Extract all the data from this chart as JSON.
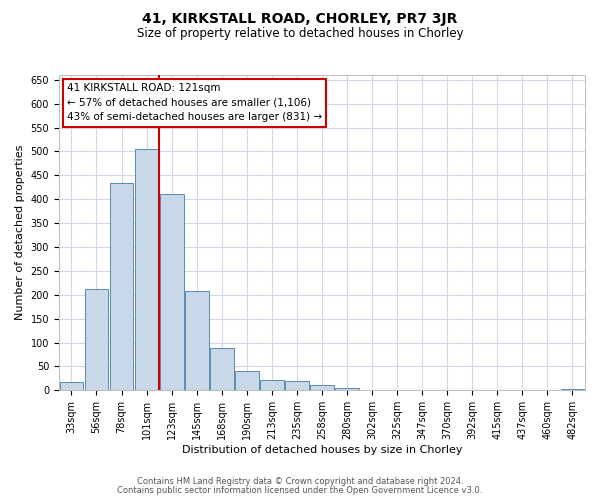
{
  "title": "41, KIRKSTALL ROAD, CHORLEY, PR7 3JR",
  "subtitle": "Size of property relative to detached houses in Chorley",
  "xlabel": "Distribution of detached houses by size in Chorley",
  "ylabel": "Number of detached properties",
  "bar_labels": [
    "33sqm",
    "56sqm",
    "78sqm",
    "101sqm",
    "123sqm",
    "145sqm",
    "168sqm",
    "190sqm",
    "213sqm",
    "235sqm",
    "258sqm",
    "280sqm",
    "302sqm",
    "325sqm",
    "347sqm",
    "370sqm",
    "392sqm",
    "415sqm",
    "437sqm",
    "460sqm",
    "482sqm"
  ],
  "bar_values": [
    18,
    212,
    435,
    505,
    410,
    208,
    88,
    40,
    22,
    19,
    12,
    5,
    0,
    0,
    0,
    0,
    0,
    0,
    0,
    0,
    3
  ],
  "bar_color": "#c8d8e8",
  "bar_edge_color": "#5a8ab0",
  "vline_index": 4,
  "vline_color": "#cc0000",
  "ylim": [
    0,
    660
  ],
  "yticks": [
    0,
    50,
    100,
    150,
    200,
    250,
    300,
    350,
    400,
    450,
    500,
    550,
    600,
    650
  ],
  "annotation_title": "41 KIRKSTALL ROAD: 121sqm",
  "annotation_line1": "← 57% of detached houses are smaller (1,106)",
  "annotation_line2": "43% of semi-detached houses are larger (831) →",
  "footer1": "Contains HM Land Registry data © Crown copyright and database right 2024.",
  "footer2": "Contains public sector information licensed under the Open Government Licence v3.0.",
  "grid_color": "#d0d8e8",
  "background_color": "#ffffff",
  "title_fontsize": 10,
  "subtitle_fontsize": 8.5,
  "xlabel_fontsize": 8,
  "ylabel_fontsize": 8,
  "tick_fontsize": 7,
  "annotation_fontsize": 7.5,
  "footer_fontsize": 6
}
